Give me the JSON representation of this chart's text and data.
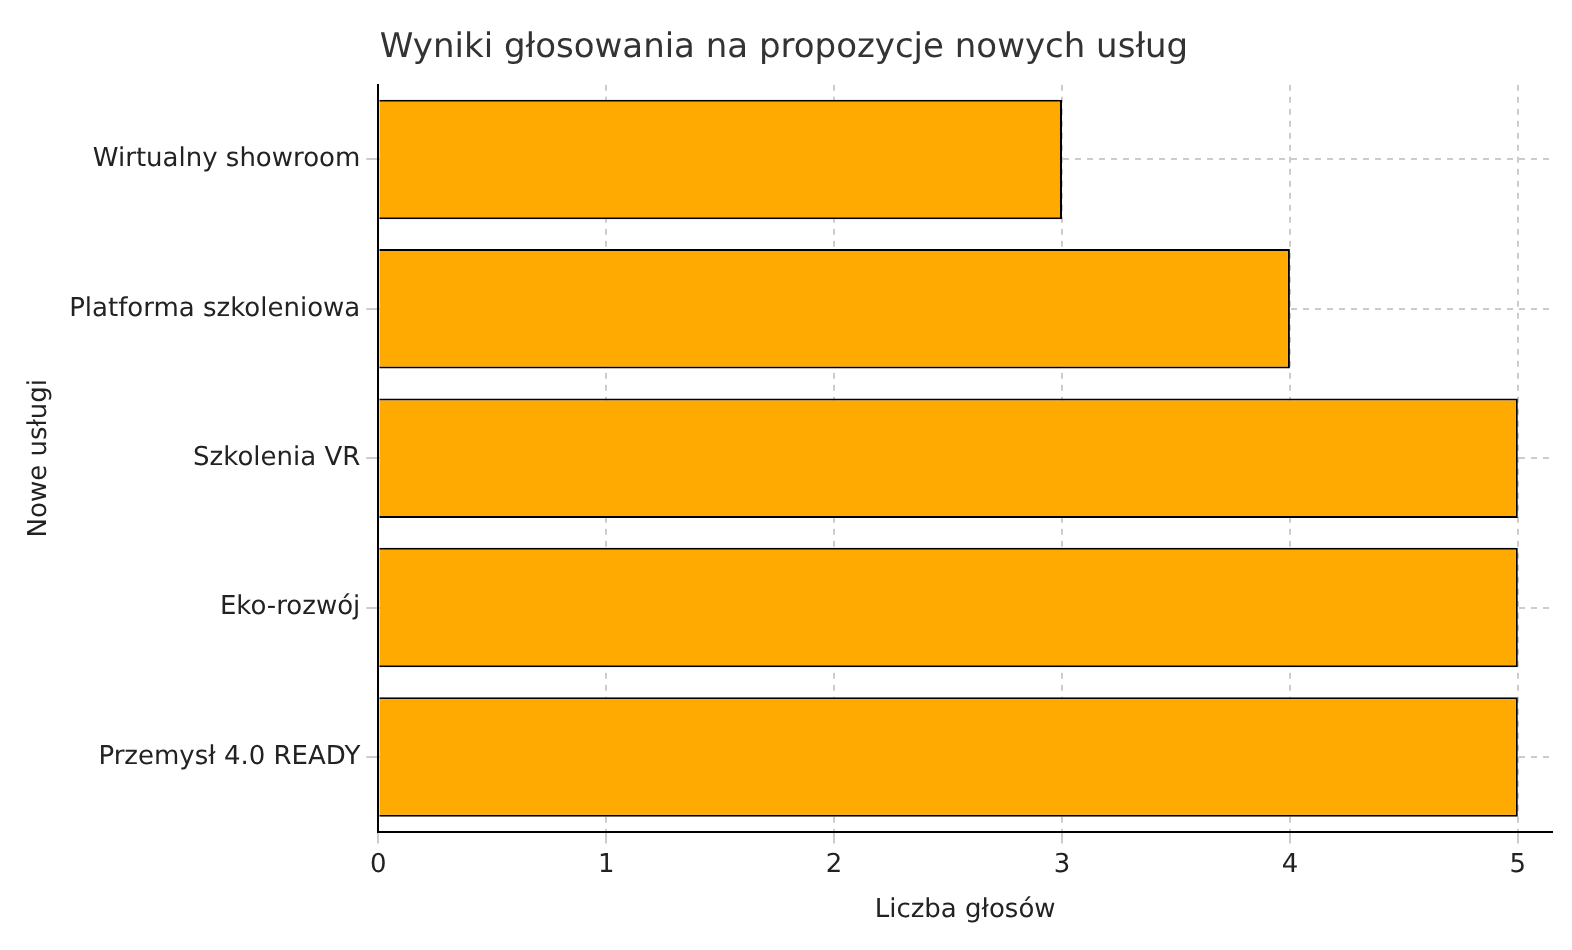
{
  "chart_data": {
    "type": "bar",
    "orientation": "horizontal",
    "title": "Wyniki głosowania na propozycje nowych usług",
    "xlabel": "Liczba głosów",
    "ylabel": "Nowe usługi",
    "categories": [
      "Wirtualny showroom",
      "Platforma szkoleniowa",
      "Szkolenia VR",
      "Eko-rozwój",
      "Przemysł 4.0 READY"
    ],
    "values": [
      3,
      4,
      5,
      5,
      5
    ],
    "color": "#ffaa00",
    "xlim": [
      0,
      5.15
    ],
    "xticks": [
      0,
      1,
      2,
      3,
      4,
      5
    ],
    "grid": true,
    "legend": false
  }
}
